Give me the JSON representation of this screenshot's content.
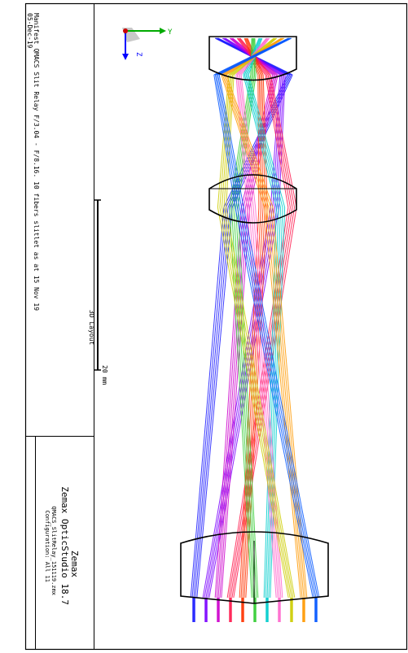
{
  "title_block": {
    "header_line1": "Manifest QMACS  Slit Relay F/3.04 - F/8.16. 10 fibers slitlet as at 15 Nov 19",
    "header_line2": "05-Dec-19",
    "view_label": "3D Layout",
    "company": "Zemax",
    "product": "Zemax OpticStudio 18.7",
    "filename": "QMACS_SlitRelay_151119.zmx",
    "configuration": "Configuration: All 11"
  },
  "scale_bar": {
    "label": "20 mm"
  },
  "axes": {
    "y_label": "Y",
    "z_label": "Z"
  },
  "colors": {
    "rays": [
      "#1a1aff",
      "#7a00ff",
      "#cc00cc",
      "#ff1a4d",
      "#ff3300",
      "#33cc33",
      "#00cccc",
      "#ff66cc",
      "#cccc00",
      "#ff9900",
      "#0055ff"
    ],
    "lens": "#000000",
    "axis_y": "#00aa00",
    "axis_z": "#0000ff",
    "axis_x": "#cc0000"
  }
}
